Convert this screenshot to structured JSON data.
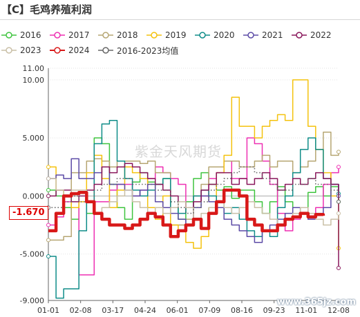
{
  "title": "【C】毛鸡养殖利润",
  "watermark": "紫金天风期货",
  "site_label": "www.365jz.com",
  "current_value_label": "-1.670",
  "chart_data": {
    "type": "line",
    "title": "【C】毛鸡养殖利润",
    "x_ticks": [
      "01-01",
      "02-08",
      "03-17",
      "04-24",
      "06-01",
      "07-09",
      "08-16",
      "09-23",
      "11-01",
      "12-08"
    ],
    "y_ticks": [
      "11.00",
      "10.00",
      "5.000",
      "0.000",
      "-5.000",
      "-9.000"
    ],
    "ylim": [
      -9,
      11
    ],
    "grid": "horizontal dotted",
    "legend_position": "top",
    "series": [
      {
        "name": "2016",
        "color": "#3ec43e",
        "style": "thin",
        "values": [
          0.5,
          0.0,
          -1.0,
          -2.0,
          -0.5,
          -1.5,
          5.0,
          4.5,
          1.0,
          -1.0,
          -2.0,
          1.2,
          2.0,
          1.2,
          1.0,
          1.5,
          -1.0,
          -2.0,
          -0.5,
          1.5,
          2.0,
          1.0,
          0.5,
          0.8,
          -0.2,
          0.5,
          0.5,
          -0.5,
          -1.5,
          -0.5,
          0.8,
          -0.5,
          -1.0,
          -1.0,
          0.3,
          0.8,
          0.0,
          0.8,
          -0.5
        ]
      },
      {
        "name": "2017",
        "color": "#ee2fb2",
        "style": "thin",
        "values": [
          -2.5,
          -1.8,
          -0.5,
          -0.5,
          -6.8,
          -6.8,
          -0.5,
          -0.5,
          0.5,
          1.0,
          1.0,
          0.0,
          0.5,
          1.5,
          2.5,
          2.0,
          1.5,
          1.0,
          -1.0,
          -0.5,
          0.0,
          1.5,
          2.0,
          3.0,
          1.5,
          1.5,
          5.0,
          4.5,
          3.0,
          1.0,
          -1.5,
          -3.0,
          -2.0,
          -1.0,
          -2.0,
          -1.0,
          1.0,
          2.0,
          2.5
        ]
      },
      {
        "name": "2018",
        "color": "#b6a672",
        "style": "thin",
        "values": [
          -3.8,
          -3.8,
          -3.5,
          2.0,
          2.0,
          3.0,
          3.2,
          3.0,
          2.5,
          3.0,
          3.0,
          3.0,
          2.8,
          3.0,
          2.0,
          2.0,
          -2.5,
          -2.5,
          -2.0,
          0.0,
          1.0,
          2.5,
          2.5,
          3.0,
          3.0,
          2.5,
          2.5,
          3.0,
          3.5,
          2.5,
          3.0,
          3.0,
          2.0,
          2.5,
          3.0,
          4.0,
          5.5,
          3.5,
          3.8
        ]
      },
      {
        "name": "2019",
        "color": "#f4c20d",
        "style": "thin",
        "values": [
          2.5,
          0.5,
          0.0,
          -1.0,
          -0.5,
          2.0,
          3.5,
          1.5,
          -1.0,
          0.5,
          2.5,
          2.0,
          1.5,
          -1.0,
          -2.0,
          0.0,
          -2.5,
          -3.0,
          -4.0,
          -4.5,
          -3.5,
          -1.0,
          2.0,
          3.5,
          8.5,
          6.0,
          6.0,
          5.0,
          6.0,
          6.5,
          7.0,
          6.5,
          10.0,
          10.0,
          6.0,
          4.0,
          2.0,
          0.0,
          -4.5
        ]
      },
      {
        "name": "2020",
        "color": "#0e8c88",
        "style": "thin",
        "values": [
          -5.2,
          -8.8,
          -8.0,
          -8.0,
          -3.0,
          -0.5,
          4.5,
          6.2,
          6.5,
          3.0,
          1.5,
          0.5,
          0.0,
          0.5,
          1.0,
          1.5,
          -1.0,
          -1.5,
          -1.0,
          0.0,
          0.5,
          0.0,
          -0.5,
          -1.5,
          -1.0,
          -2.0,
          -3.0,
          -3.5,
          -3.0,
          -3.5,
          -1.0,
          0.0,
          2.0,
          4.0,
          5.0,
          4.0,
          1.5,
          1.0,
          0.2
        ]
      },
      {
        "name": "2021",
        "color": "#5b4aa6",
        "style": "thin",
        "values": [
          1.5,
          1.8,
          1.5,
          3.2,
          1.5,
          1.5,
          2.0,
          2.5,
          1.0,
          1.0,
          0.5,
          0.0,
          0.5,
          1.0,
          -0.5,
          -1.0,
          -1.5,
          -2.0,
          -2.5,
          -1.0,
          0.0,
          -0.5,
          -1.0,
          -2.0,
          -2.5,
          -3.0,
          -3.5,
          -4.0,
          -3.0,
          -2.5,
          -2.0,
          -1.5,
          -1.0,
          -1.5,
          -2.0,
          -1.5,
          -1.0,
          1.0,
          0.0
        ]
      },
      {
        "name": "2022",
        "color": "#88155a",
        "style": "thin",
        "values": [
          0.0,
          0.5,
          0.5,
          -0.5,
          0.0,
          0.5,
          1.0,
          2.5,
          2.0,
          2.5,
          2.8,
          2.5,
          2.0,
          1.5,
          1.0,
          0.5,
          0.0,
          -0.5,
          -1.0,
          -0.5,
          0.5,
          1.0,
          2.0,
          2.0,
          1.0,
          1.5,
          1.0,
          1.5,
          2.0,
          1.5,
          0.5,
          1.0,
          1.5,
          1.0,
          1.5,
          2.0,
          1.5,
          1.0,
          -6.2
        ]
      },
      {
        "name": "2023",
        "color": "#c9bfa6",
        "style": "thin",
        "values": [
          1.5,
          0.5,
          0.0,
          0.5,
          0.5,
          -0.5,
          -1.5,
          -1.0,
          -0.5,
          0.0,
          0.5,
          -0.5,
          -1.0,
          -1.5,
          -1.0,
          -1.5,
          -1.0,
          -0.5,
          -1.0,
          -2.0,
          -1.5,
          -1.0,
          -0.5,
          -1.0,
          -1.5,
          -1.0,
          -0.5,
          -1.0,
          -1.5,
          -2.0,
          -2.5,
          -2.0,
          -1.5,
          -1.0,
          -1.5,
          -2.0,
          -2.5,
          -2.0,
          -1.5
        ]
      },
      {
        "name": "2024",
        "color": "#d81818",
        "style": "thick",
        "values": [
          -3.0,
          -1.5,
          0.0,
          0.2,
          0.3,
          -0.5,
          -1.5,
          -2.0,
          -2.5,
          -2.5,
          -2.8,
          -2.5,
          -2.0,
          -1.5,
          -1.8,
          -2.5,
          -3.5,
          -3.0,
          -2.5,
          -2.0,
          -2.8,
          -1.5,
          -0.5,
          0.5,
          0.5,
          0.0,
          -2.0,
          -2.5,
          -3.0,
          -3.0,
          -2.5,
          -2.0,
          -1.8,
          -1.5,
          -1.8,
          -1.6,
          -1.7,
          null,
          null
        ]
      },
      {
        "name": "2016-2023均值",
        "color": "#666666",
        "style": "dotted",
        "values": [
          -1.0,
          -1.0,
          -0.5,
          0.0,
          -0.5,
          -0.5,
          0.5,
          1.0,
          1.0,
          1.5,
          1.5,
          1.0,
          1.0,
          1.0,
          0.5,
          0.5,
          -0.5,
          -1.0,
          -1.5,
          -1.0,
          -0.5,
          0.5,
          1.0,
          1.5,
          2.0,
          2.5,
          2.5,
          2.0,
          1.5,
          1.0,
          0.5,
          0.5,
          1.0,
          1.0,
          1.5,
          1.0,
          1.0,
          0.5,
          -0.5
        ]
      }
    ]
  }
}
